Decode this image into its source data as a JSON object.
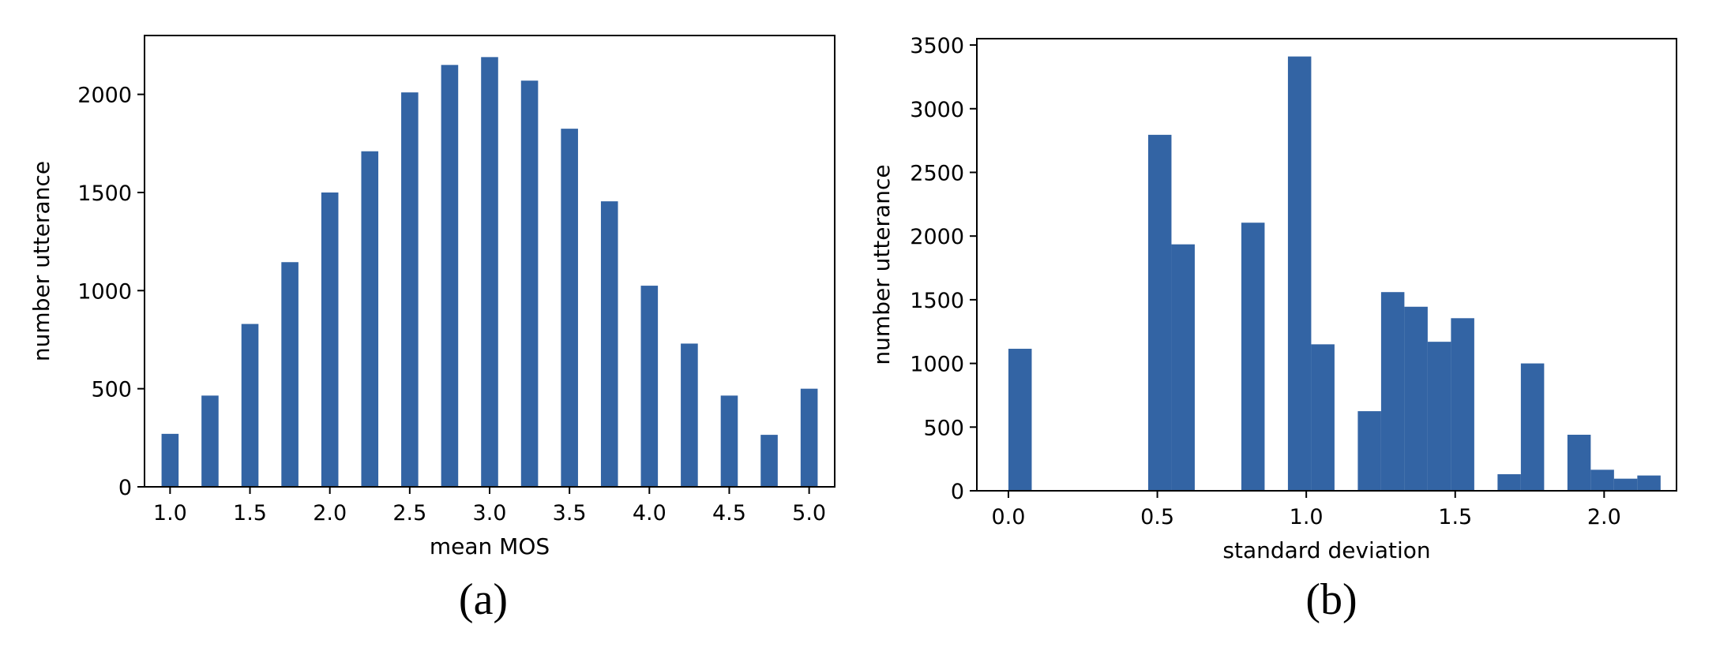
{
  "captions": [
    "(a)",
    "(b)"
  ],
  "chart_data": [
    {
      "type": "bar",
      "title": "",
      "xlabel": "mean MOS",
      "ylabel": "number utterance",
      "xlim": [
        0.84,
        5.16
      ],
      "ylim": [
        0,
        2300
      ],
      "xticks": [
        1.0,
        1.5,
        2.0,
        2.5,
        3.0,
        3.5,
        4.0,
        4.5,
        5.0
      ],
      "xtick_labels": [
        "1.0",
        "1.5",
        "2.0",
        "2.5",
        "3.0",
        "3.5",
        "4.0",
        "4.5",
        "5.0"
      ],
      "yticks": [
        0,
        500,
        1000,
        1500,
        2000
      ],
      "ytick_labels": [
        "0",
        "500",
        "1000",
        "1500",
        "2000"
      ],
      "bar_width": 0.1067,
      "x": [
        1.0,
        1.25,
        1.5,
        1.75,
        2.0,
        2.25,
        2.5,
        2.75,
        3.0,
        3.25,
        3.5,
        3.75,
        4.0,
        4.25,
        4.5,
        4.75,
        5.0
      ],
      "values": [
        270,
        465,
        830,
        1145,
        1500,
        1710,
        2010,
        2150,
        2190,
        2070,
        1825,
        1455,
        1025,
        730,
        465,
        265,
        500
      ],
      "color": "#3364a4",
      "grid": false,
      "legend": "none"
    },
    {
      "type": "bar",
      "title": "",
      "xlabel": "standard deviation",
      "ylabel": "number utterance",
      "xlim": [
        -0.106,
        2.243
      ],
      "ylim": [
        0,
        3550
      ],
      "xticks": [
        0.0,
        0.5,
        1.0,
        1.5,
        2.0
      ],
      "xtick_labels": [
        "0.0",
        "0.5",
        "1.0",
        "1.5",
        "2.0"
      ],
      "yticks": [
        0,
        500,
        1000,
        1500,
        2000,
        2500,
        3000,
        3500
      ],
      "ytick_labels": [
        "0",
        "500",
        "1000",
        "1500",
        "2000",
        "2500",
        "3000",
        "3500"
      ],
      "bins": [
        0.0,
        0.0782,
        0.1564,
        0.2346,
        0.3128,
        0.391,
        0.4692,
        0.5474,
        0.6256,
        0.7038,
        0.782,
        0.8602,
        0.9384,
        1.0166,
        1.0948,
        1.173,
        1.2512,
        1.3294,
        1.4076,
        1.4858,
        1.564,
        1.6422,
        1.7204,
        1.7986,
        1.8768,
        1.955,
        2.0332,
        2.1114
      ],
      "values": [
        1115,
        0,
        0,
        0,
        0,
        0,
        2795,
        1935,
        0,
        0,
        2105,
        0,
        3410,
        1150,
        0,
        625,
        1560,
        1445,
        1170,
        1355,
        0,
        130,
        1000,
        0,
        440,
        165,
        95,
        120
      ],
      "color": "#3364a4",
      "grid": false,
      "legend": "none"
    }
  ]
}
